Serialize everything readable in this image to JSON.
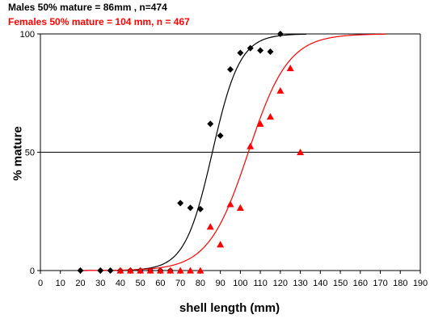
{
  "chart_data": {
    "type": "scatter",
    "title_lines": [
      {
        "text": "Males 50% mature = 86mm , n=474",
        "color": "#000000"
      },
      {
        "text": "Females 50% mature = 104 mm, n = 467",
        "color": "#ff0000"
      }
    ],
    "xlabel": "shell length (mm)",
    "ylabel": "% mature",
    "xlim": [
      0,
      190
    ],
    "ylim": [
      0,
      100
    ],
    "x_ticks": [
      0,
      10,
      20,
      30,
      40,
      50,
      60,
      70,
      80,
      90,
      100,
      110,
      120,
      130,
      140,
      150,
      160,
      170,
      180,
      190
    ],
    "y_ticks": [
      0,
      50,
      100
    ],
    "reference_line_y": 50,
    "series": [
      {
        "name": "Males",
        "color": "#000000",
        "marker": "diamond",
        "points": [
          [
            20,
            0
          ],
          [
            30,
            0
          ],
          [
            35,
            0
          ],
          [
            40,
            0
          ],
          [
            45,
            0
          ],
          [
            50,
            0
          ],
          [
            55,
            0
          ],
          [
            60,
            0
          ],
          [
            65,
            0
          ],
          [
            70,
            28.5
          ],
          [
            75,
            26.5
          ],
          [
            80,
            26
          ],
          [
            85,
            62
          ],
          [
            90,
            57
          ],
          [
            95,
            85
          ],
          [
            100,
            92
          ],
          [
            105,
            94
          ],
          [
            110,
            93
          ],
          [
            115,
            92.5
          ],
          [
            120,
            100
          ]
        ],
        "curve": {
          "x50": 86,
          "slope": 0.145,
          "xmin": 20,
          "xmax": 133
        }
      },
      {
        "name": "Females",
        "color": "#ff0000",
        "marker": "triangle",
        "points": [
          [
            40,
            0
          ],
          [
            45,
            0
          ],
          [
            50,
            0
          ],
          [
            55,
            0
          ],
          [
            60,
            0
          ],
          [
            65,
            0
          ],
          [
            70,
            0
          ],
          [
            75,
            0
          ],
          [
            80,
            0
          ],
          [
            85,
            18.5
          ],
          [
            90,
            11
          ],
          [
            95,
            28
          ],
          [
            100,
            26.5
          ],
          [
            105,
            52.5
          ],
          [
            110,
            62
          ],
          [
            115,
            65
          ],
          [
            120,
            76
          ],
          [
            125,
            85.5
          ],
          [
            130,
            50
          ]
        ],
        "curve": {
          "x50": 104,
          "slope": 0.1,
          "xmin": 20,
          "xmax": 173
        }
      }
    ]
  }
}
